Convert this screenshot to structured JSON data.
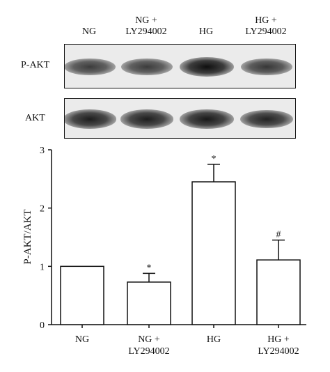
{
  "lanes": [
    {
      "line1": "NG",
      "line2": ""
    },
    {
      "line1": "NG +",
      "line2": "LY294002"
    },
    {
      "line1": "HG",
      "line2": ""
    },
    {
      "line1": "HG +",
      "line2": "LY294002"
    }
  ],
  "blots": {
    "p_akt": {
      "label": "P-AKT",
      "intensity": [
        0.55,
        0.55,
        1.0,
        0.6
      ]
    },
    "akt": {
      "label": "AKT",
      "intensity": [
        0.85,
        0.85,
        0.9,
        0.8
      ]
    }
  },
  "chart_data": {
    "type": "bar",
    "categories": [
      [
        "NG"
      ],
      [
        "NG +",
        "LY294002"
      ],
      [
        "HG"
      ],
      [
        "HG +",
        "LY294002"
      ]
    ],
    "values": [
      1.0,
      0.73,
      2.45,
      1.11
    ],
    "errors": [
      0,
      0.15,
      0.3,
      0.34
    ],
    "annotations": [
      "",
      "*",
      "*",
      "#"
    ],
    "ylabel": "P-AKT/AKT",
    "ylim": [
      0,
      3
    ],
    "yticks": [
      0,
      1,
      2,
      3
    ],
    "bar_color": "#ffffff",
    "edge_color": "#111111",
    "grid": false
  }
}
